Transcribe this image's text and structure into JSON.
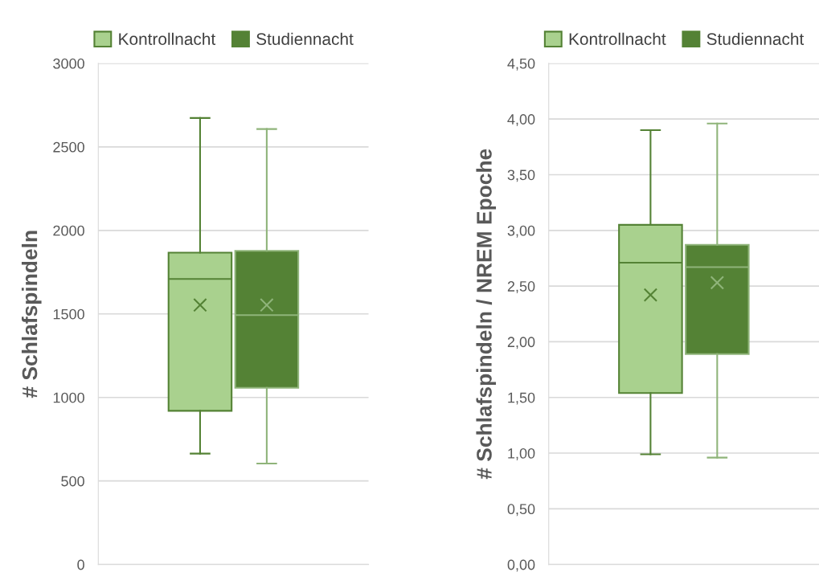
{
  "chart_data": [
    {
      "type": "box",
      "ylabel": "# Schlafspindeln",
      "categories": [
        null
      ],
      "ylim": [
        0,
        3000
      ],
      "yticks": [
        0,
        500,
        1000,
        1500,
        2000,
        2500,
        3000
      ],
      "grid": "y",
      "legend": "top",
      "series": [
        {
          "name": "Kontrollnacht",
          "color": "#a9d18e",
          "boxes": [
            {
              "low": 664,
              "q1": 920,
              "median": 1709,
              "q3": 1867,
              "high": 2673,
              "mean": 1553
            }
          ]
        },
        {
          "name": "Studiennacht",
          "color": "#548235",
          "boxes": [
            {
              "low": 604,
              "q1": 1058,
              "median": 1493,
              "q3": 1878,
              "high": 2607,
              "mean": 1553
            }
          ]
        }
      ]
    },
    {
      "type": "box",
      "ylabel": "# Schlafspindeln / NREM Epoche",
      "categories": [
        null
      ],
      "ylim": [
        0,
        4.5
      ],
      "yticks": [
        {
          "value": 0,
          "label": "0,00"
        },
        {
          "value": 0.5,
          "label": "0,50"
        },
        {
          "value": 1,
          "label": "1,00"
        },
        {
          "value": 1.5,
          "label": "1,50"
        },
        {
          "value": 2,
          "label": "2,00"
        },
        {
          "value": 2.5,
          "label": "2,50"
        },
        {
          "value": 3,
          "label": "3,00"
        },
        {
          "value": 3.5,
          "label": "3,50"
        },
        {
          "value": 4,
          "label": "4,00"
        },
        {
          "value": 4.5,
          "label": "4,50"
        }
      ],
      "grid": "y",
      "legend": "top",
      "series": [
        {
          "name": "Kontrollnacht",
          "color": "#a9d18e",
          "boxes": [
            {
              "low": 0.99,
              "q1": 1.54,
              "median": 2.71,
              "q3": 3.05,
              "high": 3.9,
              "mean": 2.42
            }
          ]
        },
        {
          "name": "Studiennacht",
          "color": "#548235",
          "boxes": [
            {
              "low": 0.96,
              "q1": 1.89,
              "median": 2.67,
              "q3": 2.87,
              "high": 3.96,
              "mean": 2.53
            }
          ]
        }
      ]
    }
  ]
}
